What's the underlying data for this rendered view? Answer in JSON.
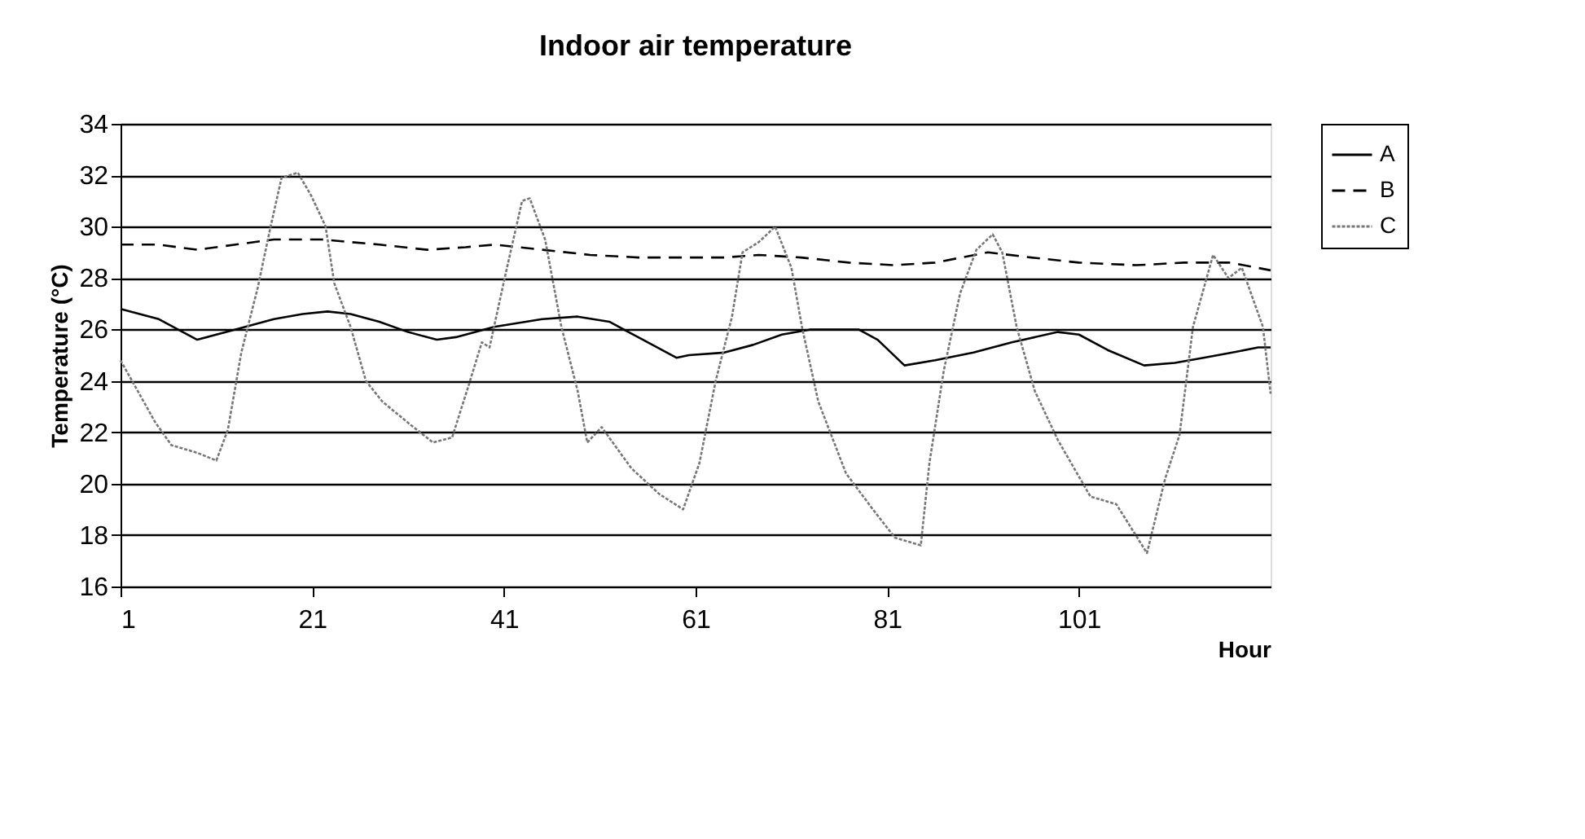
{
  "chart_data": {
    "type": "line",
    "title": "Indoor air temperature",
    "xlabel": "Hour",
    "ylabel": "Temperature (°C)",
    "xlim": [
      1,
      121
    ],
    "xticks": [
      1,
      21,
      41,
      61,
      81,
      101
    ],
    "ylim": [
      16,
      34
    ],
    "yticks": [
      16,
      18,
      20,
      22,
      24,
      26,
      28,
      30,
      32,
      34
    ],
    "grid": "y",
    "legend": "right",
    "marker": "none",
    "series": [
      {
        "name": "A",
        "color": "#000000",
        "line_style": "solid",
        "x": [
          1,
          5,
          9,
          11,
          13,
          17,
          20,
          22.6,
          25,
          28,
          31,
          34,
          36,
          40,
          45,
          48.7,
          52,
          55,
          59,
          60.3,
          64,
          67,
          70,
          73,
          76,
          78,
          80,
          82.8,
          86,
          90,
          94,
          98.8,
          101,
          104,
          107.8,
          111,
          114,
          117,
          119.7,
          121
        ],
        "values": [
          26.8,
          26.4,
          25.6,
          25.8,
          26.0,
          26.4,
          26.6,
          26.7,
          26.6,
          26.3,
          25.9,
          25.6,
          25.7,
          26.1,
          26.4,
          26.5,
          26.3,
          25.7,
          24.9,
          25.0,
          25.1,
          25.4,
          25.8,
          26.0,
          26.0,
          26.0,
          25.6,
          24.6,
          24.8,
          25.1,
          25.5,
          25.9,
          25.8,
          25.2,
          24.6,
          24.7,
          24.9,
          25.1,
          25.3,
          25.3
        ]
      },
      {
        "name": "B",
        "color": "#000000",
        "line_style": "dashed",
        "x": [
          1,
          5,
          9,
          13,
          17,
          22,
          28,
          33,
          37,
          40,
          45,
          50,
          55,
          60,
          64,
          67.6,
          72,
          77,
          81.8,
          86,
          91.5,
          96,
          101,
          107,
          112,
          116.8,
          121
        ],
        "values": [
          29.3,
          29.3,
          29.1,
          29.3,
          29.5,
          29.5,
          29.3,
          29.1,
          29.2,
          29.3,
          29.1,
          28.9,
          28.8,
          28.8,
          28.8,
          28.9,
          28.8,
          28.6,
          28.5,
          28.6,
          29.0,
          28.8,
          28.6,
          28.5,
          28.6,
          28.6,
          28.3
        ]
      },
      {
        "name": "C",
        "color": "#777777",
        "line_style": "dotted",
        "x": [
          1,
          4.6,
          6.3,
          9,
          11,
          12.2,
          13.6,
          15.3,
          16.6,
          17.8,
          19.5,
          20.9,
          22.4,
          23.3,
          25,
          26.6,
          28.3,
          30.9,
          33.6,
          35.6,
          37.3,
          38.7,
          39.5,
          41.2,
          42.9,
          43.7,
          45.3,
          47,
          48.7,
          49.7,
          51.2,
          54.3,
          57.2,
          59.7,
          61.4,
          63.1,
          64.8,
          65.9,
          67.6,
          69.3,
          71,
          72.1,
          73.8,
          76.7,
          79.5,
          81.8,
          84.5,
          85.4,
          86.9,
          88.6,
          90.3,
          92,
          93,
          94.5,
          96.4,
          98.8,
          102.2,
          104.9,
          108.1,
          110,
          111.5,
          112.9,
          115,
          116.6,
          118,
          120.2,
          121
        ],
        "values": [
          24.8,
          22.4,
          21.5,
          21.2,
          20.9,
          22.1,
          25.1,
          27.6,
          29.9,
          31.9,
          32.1,
          31.2,
          30.0,
          27.8,
          26.1,
          24.0,
          23.2,
          22.4,
          21.6,
          21.8,
          23.8,
          25.5,
          25.3,
          28.2,
          31.0,
          31.1,
          29.5,
          26.1,
          23.6,
          21.6,
          22.2,
          20.6,
          19.6,
          19.0,
          20.8,
          24.0,
          26.5,
          29.0,
          29.4,
          30.0,
          28.4,
          26.1,
          23.2,
          20.4,
          19.0,
          17.9,
          17.6,
          20.8,
          24.4,
          27.4,
          29.1,
          29.7,
          29.0,
          26.1,
          23.6,
          21.7,
          19.5,
          19.2,
          17.3,
          20.2,
          21.9,
          26.1,
          28.9,
          28.0,
          28.4,
          26.1,
          23.5
        ]
      }
    ]
  }
}
